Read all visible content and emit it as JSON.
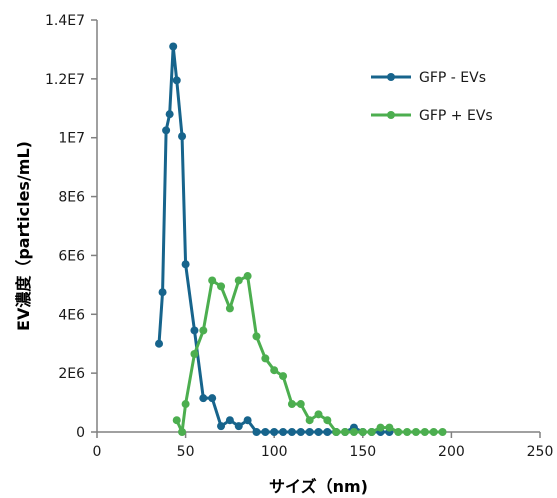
{
  "chart_data": {
    "type": "line",
    "title": "",
    "xlabel": "サイズ（nm)",
    "ylabel": "EV濃度（particles/mL)",
    "xlim": [
      0,
      250
    ],
    "ylim": [
      0,
      14000000
    ],
    "grid": false,
    "legend_position": "top-right",
    "x_ticks": [
      {
        "value": 0,
        "label": "0"
      },
      {
        "value": 50,
        "label": "50"
      },
      {
        "value": 100,
        "label": "100"
      },
      {
        "value": 150,
        "label": "150"
      },
      {
        "value": 200,
        "label": "200"
      },
      {
        "value": 250,
        "label": "250"
      }
    ],
    "y_ticks": [
      {
        "value": 0,
        "label": "0"
      },
      {
        "value": 2000000,
        "label": "2E6"
      },
      {
        "value": 4000000,
        "label": "4E6"
      },
      {
        "value": 6000000,
        "label": "6E6"
      },
      {
        "value": 8000000,
        "label": "8E6"
      },
      {
        "value": 10000000,
        "label": "1E7"
      },
      {
        "value": 12000000,
        "label": "1.2E7"
      },
      {
        "value": 14000000,
        "label": "1.4E7"
      }
    ],
    "series": [
      {
        "name": "GFP - EVs",
        "color": "#17648c",
        "points": [
          [
            35,
            3000000
          ],
          [
            37,
            4750000
          ],
          [
            39,
            10250000
          ],
          [
            41,
            10800000
          ],
          [
            43,
            13100000
          ],
          [
            45,
            11950000
          ],
          [
            48,
            10050000
          ],
          [
            50,
            5700000
          ],
          [
            55,
            3450000
          ],
          [
            60,
            1150000
          ],
          [
            65,
            1150000
          ],
          [
            70,
            200000
          ],
          [
            75,
            400000
          ],
          [
            80,
            200000
          ],
          [
            85,
            400000
          ],
          [
            90,
            0
          ],
          [
            95,
            0
          ],
          [
            100,
            0
          ],
          [
            105,
            0
          ],
          [
            110,
            0
          ],
          [
            115,
            0
          ],
          [
            120,
            0
          ],
          [
            125,
            0
          ],
          [
            130,
            0
          ],
          [
            135,
            0
          ],
          [
            140,
            0
          ],
          [
            145,
            150000
          ],
          [
            150,
            0
          ],
          [
            155,
            0
          ],
          [
            160,
            0
          ],
          [
            165,
            0
          ]
        ]
      },
      {
        "name": "GFP + EVs",
        "color": "#4cae4f",
        "points": [
          [
            45,
            400000
          ],
          [
            48,
            0
          ],
          [
            50,
            950000
          ],
          [
            55,
            2650000
          ],
          [
            60,
            3450000
          ],
          [
            65,
            5150000
          ],
          [
            70,
            4950000
          ],
          [
            75,
            4200000
          ],
          [
            80,
            5150000
          ],
          [
            85,
            5300000
          ],
          [
            90,
            3250000
          ],
          [
            95,
            2500000
          ],
          [
            100,
            2100000
          ],
          [
            105,
            1900000
          ],
          [
            110,
            950000
          ],
          [
            115,
            950000
          ],
          [
            120,
            400000
          ],
          [
            125,
            600000
          ],
          [
            130,
            400000
          ],
          [
            135,
            0
          ],
          [
            140,
            0
          ],
          [
            145,
            0
          ],
          [
            150,
            0
          ],
          [
            155,
            0
          ],
          [
            160,
            150000
          ],
          [
            165,
            150000
          ],
          [
            170,
            0
          ],
          [
            175,
            0
          ],
          [
            180,
            0
          ],
          [
            185,
            0
          ],
          [
            190,
            0
          ],
          [
            195,
            0
          ]
        ]
      }
    ]
  }
}
